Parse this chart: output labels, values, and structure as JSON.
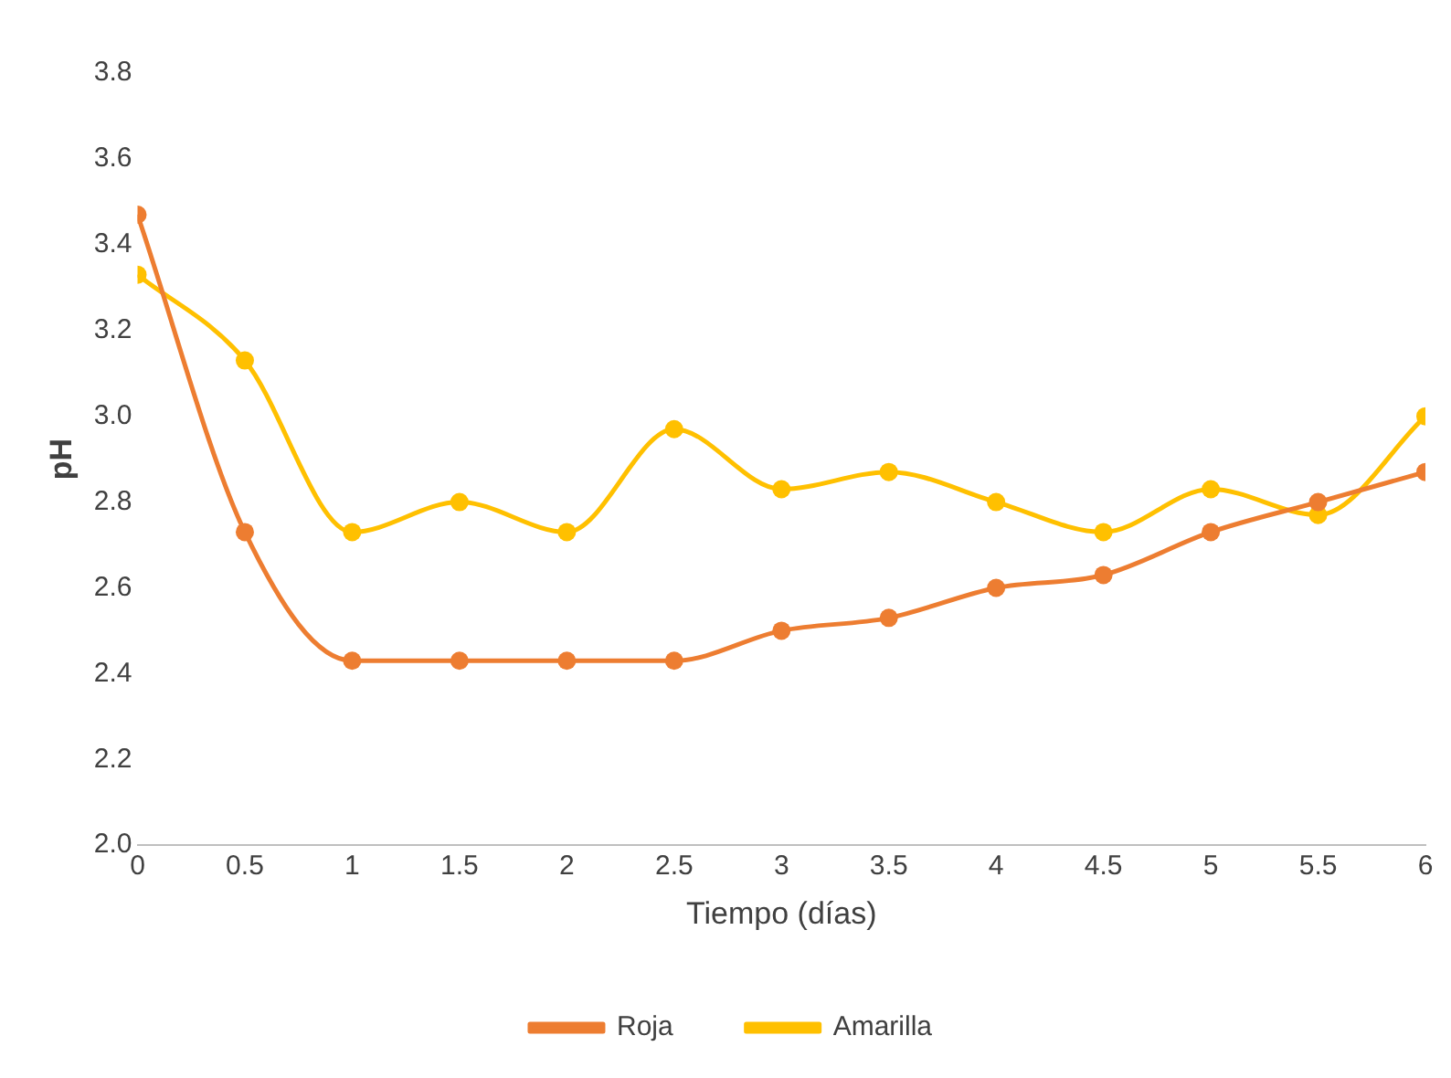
{
  "chart_data": {
    "type": "line",
    "xlabel": "Tiempo (días)",
    "ylabel": "pH",
    "x": [
      0,
      0.5,
      1,
      1.5,
      2,
      2.5,
      3,
      3.5,
      4,
      4.5,
      5,
      5.5,
      6
    ],
    "series": [
      {
        "name": "Roja",
        "color": "#ed7d31",
        "values": [
          3.47,
          2.73,
          2.43,
          2.43,
          2.43,
          2.43,
          2.5,
          2.53,
          2.6,
          2.63,
          2.73,
          2.8,
          2.87
        ]
      },
      {
        "name": "Amarilla",
        "color": "#ffc000",
        "values": [
          3.33,
          3.13,
          2.73,
          2.8,
          2.73,
          2.97,
          2.83,
          2.87,
          2.8,
          2.73,
          2.83,
          2.77,
          3.0
        ]
      }
    ],
    "xlim": [
      0,
      6
    ],
    "xticks": [
      0,
      0.5,
      1,
      1.5,
      2,
      2.5,
      3,
      3.5,
      4,
      4.5,
      5,
      5.5,
      6
    ],
    "ylim": [
      2.0,
      3.8
    ],
    "yticks": [
      {
        "value": 2.0,
        "label": "2.0"
      },
      {
        "value": 2.2,
        "label": "2.2"
      },
      {
        "value": 2.4,
        "label": "2.4"
      },
      {
        "value": 2.6,
        "label": "2.6"
      },
      {
        "value": 2.8,
        "label": "2.8"
      },
      {
        "value": 3.0,
        "label": "3.0"
      },
      {
        "value": 3.2,
        "label": "3.2"
      },
      {
        "value": 3.4,
        "label": "3.4"
      },
      {
        "value": 3.6,
        "label": "3.6"
      },
      {
        "value": 3.8,
        "label": "3.8"
      }
    ],
    "grid": false,
    "legend": "bottom",
    "marker": "circle",
    "line_style": "solid"
  }
}
